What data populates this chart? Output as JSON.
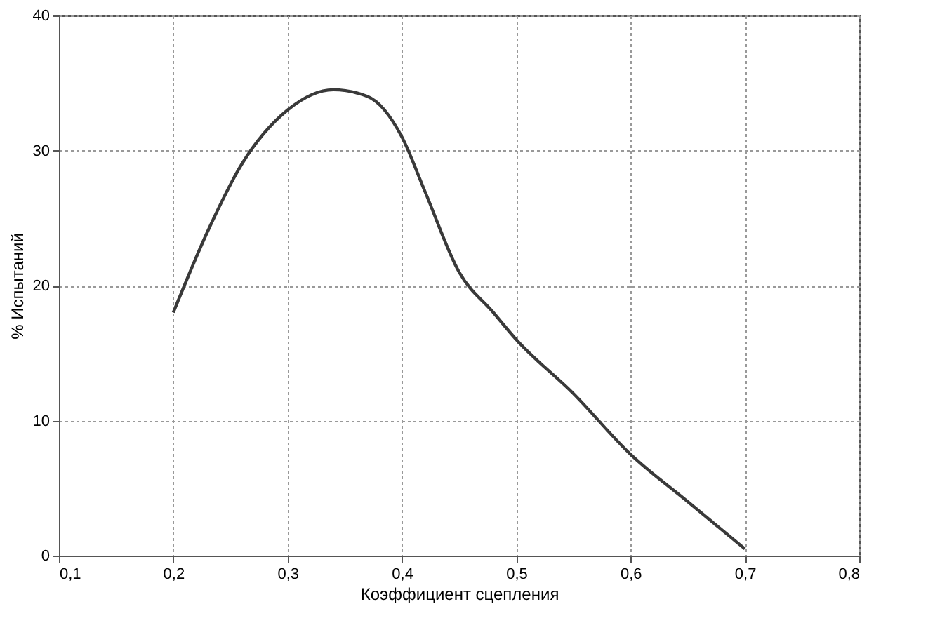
{
  "chart_data": {
    "type": "line",
    "xlabel": "Коэффициент сцепления",
    "ylabel": "% Испытаний",
    "x": [
      0.2,
      0.23,
      0.26,
      0.3,
      0.34,
      0.37,
      0.4,
      0.42,
      0.45,
      0.48,
      0.5,
      0.55,
      0.6,
      0.65,
      0.7
    ],
    "series": [
      {
        "color": "#3a3a3a",
        "values": [
          18,
          24,
          29,
          33,
          34.5,
          34,
          31,
          27,
          21,
          18,
          16,
          12,
          7.5,
          4,
          0.5
        ]
      }
    ],
    "xlim": [
      0.1,
      0.8
    ],
    "ylim": [
      0,
      40
    ],
    "xticks": [
      {
        "value": 0.1,
        "label": "0,1"
      },
      {
        "value": 0.2,
        "label": "0,2"
      },
      {
        "value": 0.3,
        "label": "0,3"
      },
      {
        "value": 0.4,
        "label": "0,4"
      },
      {
        "value": 0.5,
        "label": "0,5"
      },
      {
        "value": 0.6,
        "label": "0,6"
      },
      {
        "value": 0.7,
        "label": "0,7"
      },
      {
        "value": 0.8,
        "label": "0,8"
      }
    ],
    "yticks": [
      0,
      10,
      20,
      30,
      40
    ],
    "grid": true,
    "marker": "none",
    "line_style": "solid"
  }
}
